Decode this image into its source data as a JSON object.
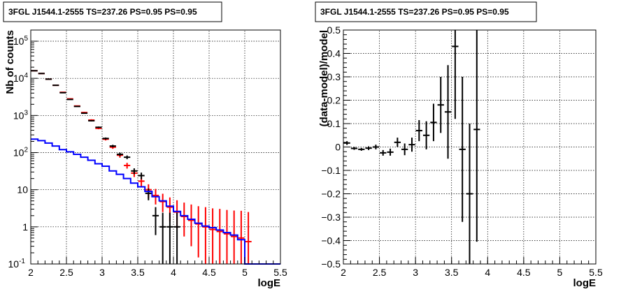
{
  "chart_data": [
    {
      "type": "histogram",
      "title": "3FGL J1544.1-2555 TS=237.26 PS=0.95 PS=0.95",
      "xlabel": "logE",
      "ylabel": "Nb of counts",
      "xlim": [
        2,
        5.5
      ],
      "ylim": [
        0.1,
        200000
      ],
      "yscale": "log",
      "grid": true,
      "x_ticks": [
        "2",
        "2.5",
        "3",
        "3.5",
        "4",
        "4.5",
        "5",
        "5.5"
      ],
      "y_ticks": [
        {
          "label": "10",
          "sup": "-1",
          "value": 0.1
        },
        {
          "label": "1",
          "sup": "",
          "value": 1
        },
        {
          "label": "10",
          "sup": "",
          "value": 10
        },
        {
          "label": "10",
          "sup": "2",
          "value": 100
        },
        {
          "label": "10",
          "sup": "3",
          "value": 1000
        },
        {
          "label": "10",
          "sup": "4",
          "value": 10000
        },
        {
          "label": "10",
          "sup": "5",
          "value": 100000
        }
      ],
      "series": [
        {
          "color": "#ff0000",
          "style": "errorbar",
          "x": [
            2.05,
            2.15,
            2.25,
            2.35,
            2.45,
            2.55,
            2.65,
            2.75,
            2.85,
            2.95,
            3.05,
            3.15,
            3.25,
            3.35,
            3.45,
            3.55,
            3.65,
            3.75,
            3.85,
            3.95,
            4.05,
            4.15,
            4.25,
            4.35,
            4.45,
            4.55,
            4.65,
            4.75,
            4.85,
            4.95,
            5.05
          ],
          "y": [
            16000,
            13500,
            9500,
            6500,
            4200,
            2800,
            1800,
            1200,
            750,
            450,
            230,
            140,
            85,
            45,
            28,
            17,
            10,
            7,
            4.8,
            3.4,
            2.5,
            1.9,
            1.5,
            1.2,
            1.0,
            0.85,
            0.75,
            0.65,
            0.55,
            0.5,
            0.4
          ],
          "err_lo": [
            300,
            250,
            200,
            150,
            100,
            80,
            60,
            50,
            40,
            25,
            18,
            14,
            12,
            8,
            6,
            5,
            4,
            3,
            2.3,
            2,
            1.6,
            1.35,
            1.2,
            1.05,
            0.95,
            0.82,
            0.73,
            0.64,
            0.55,
            0.5,
            0.4
          ],
          "err_hi": [
            300,
            250,
            200,
            150,
            100,
            80,
            60,
            50,
            40,
            25,
            18,
            14,
            12,
            8,
            6,
            5,
            4,
            3.5,
            3,
            2.8,
            2.7,
            2.6,
            2.5,
            2.4,
            2.4,
            2.3,
            2.3,
            2.2,
            2.2,
            2.2,
            2.1
          ]
        },
        {
          "color": "#000000",
          "style": "errorbar",
          "x": [
            2.05,
            2.15,
            2.25,
            2.35,
            2.45,
            2.55,
            2.65,
            2.75,
            2.85,
            2.95,
            3.05,
            3.15,
            3.25,
            3.35,
            3.45,
            3.55,
            3.65,
            3.75,
            3.85,
            3.95,
            4.05
          ],
          "y": [
            16000,
            13500,
            9500,
            6500,
            4100,
            2700,
            1750,
            1150,
            720,
            480,
            240,
            150,
            90,
            75,
            32,
            24,
            8,
            2,
            1,
            1,
            1
          ],
          "err_lo": [
            130,
            115,
            100,
            80,
            65,
            52,
            42,
            34,
            27,
            22,
            15,
            12,
            9.5,
            8.6,
            5.7,
            4.9,
            2.8,
            1.4,
            1,
            1,
            1
          ],
          "err_hi": [
            130,
            115,
            100,
            80,
            65,
            52,
            42,
            34,
            27,
            22,
            15,
            12,
            9.5,
            8.6,
            5.7,
            4.9,
            2.8,
            1.4,
            1.4,
            1.4,
            1.4
          ]
        },
        {
          "color": "#0000ff",
          "style": "step",
          "x": [
            2.05,
            2.15,
            2.25,
            2.35,
            2.45,
            2.55,
            2.65,
            2.75,
            2.85,
            2.95,
            3.05,
            3.15,
            3.25,
            3.35,
            3.45,
            3.55,
            3.65,
            3.75,
            3.85,
            3.95,
            4.05,
            4.15,
            4.25,
            4.35,
            4.45,
            4.55,
            4.65,
            4.75,
            4.85,
            4.95,
            5.05,
            5.15,
            5.25,
            5.35,
            5.45
          ],
          "y": [
            230,
            210,
            180,
            150,
            120,
            105,
            90,
            75,
            62,
            50,
            43,
            32,
            26,
            20,
            15,
            12,
            9,
            6.5,
            5,
            3.6,
            2.6,
            2,
            1.6,
            1.25,
            1.05,
            0.95,
            0.82,
            0.7,
            0.6,
            0.45,
            0.1,
            0.1,
            0.1,
            0.1,
            0.1
          ]
        }
      ]
    },
    {
      "type": "errorbar",
      "title": "3FGL J1544.1-2555 TS=237.26 PS=0.95 PS=0.95",
      "xlabel": "logE",
      "ylabel": "(data-model)/model",
      "xlim": [
        2,
        5.5
      ],
      "ylim": [
        -0.5,
        0.5
      ],
      "grid": true,
      "x_ticks": [
        "2",
        "2.5",
        "3",
        "3.5",
        "4",
        "4.5",
        "5",
        "5.5"
      ],
      "y_ticks": [
        "−0.5",
        "−0.4",
        "−0.3",
        "−0.2",
        "−0.1",
        "0",
        "0.1",
        "0.2",
        "0.3",
        "0.4",
        "0.5"
      ],
      "series": [
        {
          "color": "#000000",
          "x": [
            2.05,
            2.15,
            2.25,
            2.35,
            2.45,
            2.55,
            2.65,
            2.75,
            2.85,
            2.95,
            3.05,
            3.15,
            3.25,
            3.35,
            3.45,
            3.55,
            3.65,
            3.75,
            3.85
          ],
          "y": [
            0.017,
            -0.006,
            -0.01,
            -0.005,
            0.0,
            -0.025,
            -0.022,
            0.02,
            -0.01,
            0.01,
            0.07,
            0.05,
            0.105,
            0.18,
            0.15,
            0.43,
            -0.01,
            -0.2,
            0.075
          ],
          "err": [
            0.008,
            0.006,
            0.006,
            0.008,
            0.01,
            0.012,
            0.015,
            0.02,
            0.025,
            0.03,
            0.045,
            0.06,
            0.08,
            0.12,
            0.2,
            0.31,
            0.31,
            0.3,
            0.48
          ]
        }
      ]
    }
  ]
}
